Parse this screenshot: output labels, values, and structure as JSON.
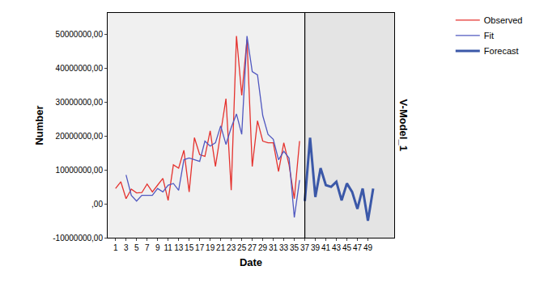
{
  "chart_data": {
    "type": "line",
    "x_label": "Date",
    "y_label": "Number",
    "annotations": [
      "V-Model_1"
    ],
    "categories": [
      "1",
      null,
      "3",
      null,
      "5",
      null,
      "7",
      null,
      "9",
      null,
      "11",
      null,
      "13",
      null,
      "15",
      null,
      "17",
      null,
      "19",
      null,
      "21",
      null,
      "23",
      null,
      "25",
      null,
      "27",
      null,
      "29",
      null,
      "31",
      null,
      "33",
      null,
      "35",
      null,
      "37",
      null,
      "39",
      null,
      "41",
      null,
      "43",
      null,
      "45",
      null,
      "47",
      null,
      "49",
      null
    ],
    "series": [
      {
        "name": "Observed",
        "color": "#e5322e",
        "line_style": "solid",
        "values": [
          4500000,
          6500000,
          1500000,
          4300000,
          3200000,
          3300000,
          5800000,
          3500000,
          5500000,
          7500000,
          1000000,
          11500000,
          10500000,
          15800000,
          3500000,
          19500000,
          14500000,
          14000000,
          21500000,
          11000000,
          21000000,
          31000000,
          4000000,
          49500000,
          32000000,
          48500000,
          11000000,
          24500000,
          18500000,
          18000000,
          18000000,
          9500000,
          18000000,
          11500000,
          1500000,
          18500000,
          null,
          null,
          null,
          null,
          null,
          null,
          null,
          null,
          null,
          null,
          null,
          null,
          null,
          null
        ]
      },
      {
        "name": "Fit",
        "color": "#5058c0",
        "line_style": "solid",
        "values": [
          null,
          null,
          8500000,
          2500000,
          800000,
          2500000,
          2500000,
          2500000,
          4500000,
          3500000,
          5500000,
          6000000,
          4000000,
          13000000,
          13500000,
          13000000,
          12500000,
          18500000,
          17000000,
          18000000,
          23000000,
          17500000,
          22500000,
          26500000,
          20500000,
          49500000,
          39000000,
          38000000,
          26000000,
          20500000,
          19000000,
          13000000,
          15500000,
          13500000,
          -4000000,
          7000000,
          null,
          null,
          null,
          null,
          null,
          null,
          null,
          null,
          null,
          null,
          null,
          null,
          null,
          null
        ]
      },
      {
        "name": "Forecast",
        "color": "#3b58a8",
        "line_style": "bold",
        "values": [
          null,
          null,
          null,
          null,
          null,
          null,
          null,
          null,
          null,
          null,
          null,
          null,
          null,
          null,
          null,
          null,
          null,
          null,
          null,
          null,
          null,
          null,
          null,
          null,
          null,
          null,
          null,
          null,
          null,
          null,
          null,
          null,
          null,
          null,
          null,
          null,
          800000,
          19500000,
          2000000,
          10500000,
          5500000,
          5000000,
          6500000,
          1000000,
          6000000,
          3500000,
          -1500000,
          4500000,
          -5000000,
          4500000
        ]
      }
    ],
    "ylim": [
      -10000000,
      56300000
    ],
    "yticks": [
      {
        "value": -10000000,
        "label": "-10000000,00"
      },
      {
        "value": 0,
        "label": ",00"
      },
      {
        "value": 10000000,
        "label": "10000000,00"
      },
      {
        "value": 20000000,
        "label": "20000000,00"
      },
      {
        "value": 30000000,
        "label": "30000000,00"
      },
      {
        "value": 40000000,
        "label": "40000000,00"
      },
      {
        "value": 50000000,
        "label": "50000000,00"
      }
    ],
    "grid": false,
    "legend": "top right"
  }
}
